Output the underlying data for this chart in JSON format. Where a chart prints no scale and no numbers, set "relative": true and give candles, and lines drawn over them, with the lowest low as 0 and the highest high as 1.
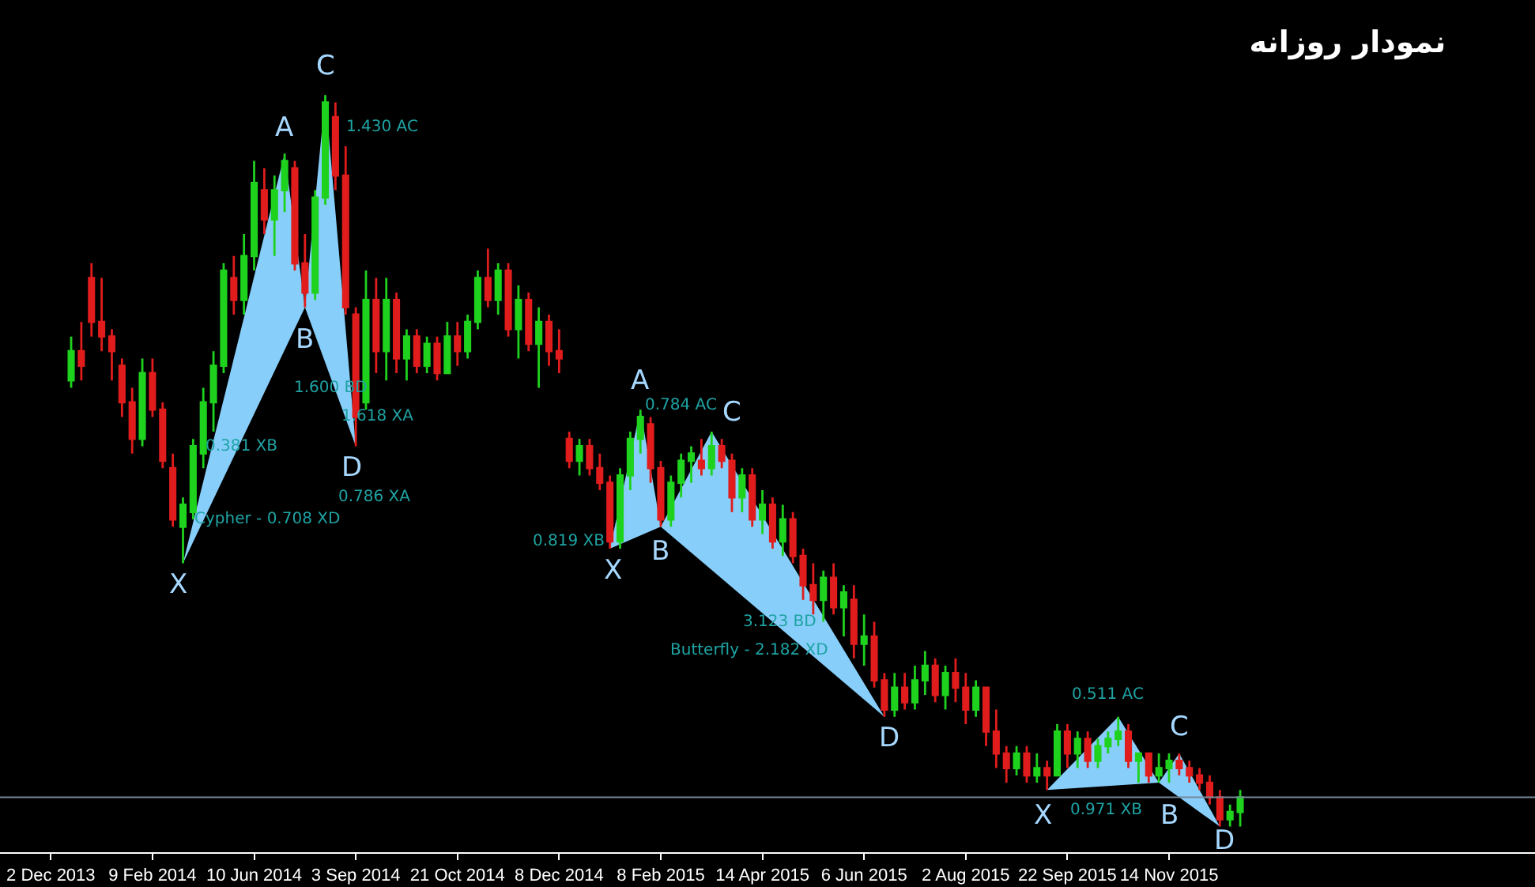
{
  "chart_data": {
    "type": "candlestick",
    "title": "نمودار روزانه",
    "relative": true,
    "categories": [
      "2 Dec 2013",
      null,
      null,
      null,
      null,
      null,
      null,
      null,
      null,
      null,
      "9 Feb 2014",
      null,
      null,
      null,
      null,
      null,
      null,
      null,
      null,
      null,
      "10 Jun 2014",
      null,
      null,
      null,
      null,
      null,
      null,
      null,
      null,
      null,
      "3 Sep 2014",
      null,
      null,
      null,
      null,
      null,
      null,
      null,
      null,
      null,
      "21 Oct 2014",
      null,
      null,
      null,
      null,
      null,
      null,
      null,
      null,
      null,
      "8 Dec 2014",
      null,
      null,
      null,
      null,
      null,
      null,
      null,
      null,
      null,
      "8 Feb 2015",
      null,
      null,
      null,
      null,
      null,
      null,
      null,
      null,
      null,
      "14 Apr 2015",
      null,
      null,
      null,
      null,
      null,
      null,
      null,
      null,
      null,
      "6 Jun 2015",
      null,
      null,
      null,
      null,
      null,
      null,
      null,
      null,
      null,
      "2 Aug 2015",
      null,
      null,
      null,
      null,
      null,
      null,
      null,
      null,
      null,
      "22 Sep 2015",
      null,
      null,
      null,
      null,
      null,
      null,
      null,
      null,
      null,
      "14 Nov 2015",
      null,
      null,
      null,
      null,
      null,
      null,
      null
    ],
    "series": [
      {
        "type": "area",
        "color": "#87cefa",
        "values": [
          null,
          null,
          null,
          null,
          null,
          null,
          null,
          null,
          null,
          null,
          null,
          null,
          null,
          0.36,
          null,
          null,
          null,
          null,
          null,
          null,
          null,
          null,
          null,
          0.92,
          null,
          0.71,
          null,
          null,
          null,
          null,
          null,
          null,
          null,
          null,
          null,
          null,
          null,
          null,
          null,
          null,
          null,
          null,
          null,
          null,
          null,
          null,
          null,
          null,
          null,
          null,
          null,
          null,
          null,
          null,
          null,
          null,
          null,
          null,
          null,
          null,
          null,
          null,
          null,
          null,
          null,
          null,
          null,
          null,
          null,
          null,
          null,
          null,
          null,
          null,
          null,
          null,
          null,
          null,
          null,
          null,
          null,
          null,
          null,
          null,
          null,
          null,
          null,
          null,
          null,
          null,
          null,
          null,
          null,
          null,
          null,
          null,
          null,
          null,
          null,
          null,
          null,
          null,
          null,
          null,
          null,
          null,
          null,
          null,
          null,
          null,
          null,
          null,
          null,
          null,
          null,
          null,
          null,
          null
        ]
      },
      {
        "type": "area",
        "color": "#87cefa",
        "values": [
          null,
          null,
          null,
          null,
          null,
          null,
          null,
          null,
          null,
          null,
          null,
          null,
          null,
          null,
          null,
          null,
          null,
          null,
          null,
          null,
          null,
          null,
          null,
          null,
          null,
          0.71,
          null,
          1.0,
          null,
          null,
          0.52,
          null,
          null,
          null,
          null,
          null,
          null,
          null,
          null,
          null,
          null,
          null,
          null,
          null,
          null,
          null,
          null,
          null,
          null,
          null,
          null,
          null,
          null,
          null,
          null,
          null,
          null,
          null,
          null,
          null,
          null,
          null,
          null,
          null,
          null,
          null,
          null,
          null,
          null,
          null,
          null,
          null,
          null,
          null,
          null,
          null,
          null,
          null,
          null,
          null,
          null,
          null,
          null,
          null,
          null,
          null,
          null,
          null,
          null,
          null,
          null,
          null,
          null,
          null,
          null,
          null,
          null,
          null,
          null,
          null,
          null,
          null,
          null,
          null,
          null,
          null,
          null,
          null,
          null,
          null,
          null,
          null,
          null,
          null,
          null,
          null,
          null,
          null
        ]
      },
      {
        "type": "area",
        "color": "#87cefa",
        "values": [
          null,
          null,
          null,
          null,
          null,
          null,
          null,
          null,
          null,
          null,
          null,
          null,
          null,
          null,
          null,
          null,
          null,
          null,
          null,
          null,
          null,
          null,
          null,
          null,
          null,
          null,
          null,
          null,
          null,
          null,
          null,
          null,
          null,
          null,
          null,
          null,
          null,
          null,
          null,
          null,
          null,
          null,
          null,
          null,
          null,
          null,
          null,
          null,
          null,
          null,
          null,
          null,
          null,
          null,
          null,
          0.38,
          null,
          null,
          0.57,
          null,
          0.41,
          null,
          null,
          null,
          null,
          null,
          null,
          null,
          null,
          null,
          null,
          null,
          null,
          null,
          null,
          null,
          null,
          null,
          null,
          null,
          null,
          null,
          null,
          null,
          null,
          null,
          null,
          null,
          null,
          null,
          null,
          null,
          null,
          null,
          null,
          null,
          null,
          null,
          null,
          null,
          null,
          null,
          null,
          null,
          null,
          null,
          null,
          null,
          null,
          null,
          null,
          null,
          null,
          null,
          null,
          null,
          null,
          null
        ]
      },
      {
        "type": "area",
        "color": "#87cefa",
        "values": [
          null,
          null,
          null,
          null,
          null,
          null,
          null,
          null,
          null,
          null,
          null,
          null,
          null,
          null,
          null,
          null,
          null,
          null,
          null,
          null,
          null,
          null,
          null,
          null,
          null,
          null,
          null,
          null,
          null,
          null,
          null,
          null,
          null,
          null,
          null,
          null,
          null,
          null,
          null,
          null,
          null,
          null,
          null,
          null,
          null,
          null,
          null,
          null,
          null,
          null,
          null,
          null,
          null,
          null,
          null,
          null,
          null,
          null,
          null,
          null,
          0.41,
          null,
          null,
          null,
          null,
          0.54,
          null,
          null,
          null,
          null,
          null,
          null,
          null,
          null,
          null,
          null,
          null,
          null,
          null,
          null,
          null,
          null,
          0.15,
          null,
          null,
          null,
          null,
          null,
          null,
          null,
          null,
          null,
          null,
          null,
          null,
          null,
          null,
          null,
          null,
          null,
          null,
          null,
          null,
          null,
          null,
          null,
          null,
          null,
          null,
          null,
          null,
          null,
          null,
          null,
          null,
          null,
          null,
          null
        ]
      },
      {
        "type": "area",
        "color": "#87cefa",
        "values": [
          null,
          null,
          null,
          null,
          null,
          null,
          null,
          null,
          null,
          null,
          null,
          null,
          null,
          null,
          null,
          null,
          null,
          null,
          null,
          null,
          null,
          null,
          null,
          null,
          null,
          null,
          null,
          null,
          null,
          null,
          null,
          null,
          null,
          null,
          null,
          null,
          null,
          null,
          null,
          null,
          null,
          null,
          null,
          null,
          null,
          null,
          null,
          null,
          null,
          null,
          null,
          null,
          null,
          null,
          null,
          null,
          null,
          null,
          null,
          null,
          null,
          null,
          null,
          null,
          null,
          null,
          null,
          null,
          null,
          null,
          null,
          null,
          null,
          null,
          null,
          null,
          null,
          null,
          null,
          null,
          null,
          null,
          null,
          null,
          null,
          null,
          null,
          null,
          null,
          null,
          null,
          null,
          null,
          null,
          null,
          null,
          null,
          null,
          0.05,
          null,
          null,
          null,
          null,
          null,
          null,
          0.15,
          null,
          null,
          null,
          0.06,
          null,
          null,
          null,
          null,
          null,
          null,
          null,
          null
        ]
      },
      {
        "type": "area",
        "color": "#87cefa",
        "values": [
          null,
          null,
          null,
          null,
          null,
          null,
          null,
          null,
          null,
          null,
          null,
          null,
          null,
          null,
          null,
          null,
          null,
          null,
          null,
          null,
          null,
          null,
          null,
          null,
          null,
          null,
          null,
          null,
          null,
          null,
          null,
          null,
          null,
          null,
          null,
          null,
          null,
          null,
          null,
          null,
          null,
          null,
          null,
          null,
          null,
          null,
          null,
          null,
          null,
          null,
          null,
          null,
          null,
          null,
          null,
          null,
          null,
          null,
          null,
          null,
          null,
          null,
          null,
          null,
          null,
          null,
          null,
          null,
          null,
          null,
          null,
          null,
          null,
          null,
          null,
          null,
          null,
          null,
          null,
          null,
          null,
          null,
          null,
          null,
          null,
          null,
          null,
          null,
          null,
          null,
          null,
          null,
          null,
          null,
          null,
          null,
          null,
          null,
          null,
          null,
          null,
          null,
          null,
          null,
          null,
          null,
          null,
          null,
          null,
          0.06,
          null,
          0.1,
          null,
          null,
          null,
          0.0,
          null,
          null
        ]
      },
      {
        "color": "#1ed21e",
        "ohlc": [
          null,
          null,
          [
            0.61,
            0.67,
            0.6,
            0.65
          ],
          null,
          null,
          null,
          null,
          null,
          null,
          [
            0.53,
            0.64,
            0.52,
            0.62
          ],
          null,
          null,
          null,
          [
            0.41,
            0.45,
            0.36,
            0.44
          ],
          [
            0.43,
            0.53,
            0.42,
            0.52
          ],
          [
            0.51,
            0.6,
            0.49,
            0.58
          ],
          [
            0.58,
            0.65,
            0.54,
            0.63
          ],
          [
            0.63,
            0.77,
            0.62,
            0.76
          ],
          null,
          [
            0.72,
            0.81,
            0.7,
            0.78
          ],
          [
            0.78,
            0.91,
            0.76,
            0.88
          ],
          null,
          [
            0.83,
            0.89,
            0.78,
            0.87
          ],
          [
            0.87,
            0.92,
            0.84,
            0.91
          ],
          null,
          null,
          [
            0.73,
            0.87,
            0.72,
            0.86
          ],
          [
            0.86,
            1.0,
            0.85,
            0.99
          ],
          null,
          null,
          null,
          [
            0.58,
            0.76,
            0.57,
            0.72
          ],
          null,
          [
            0.65,
            0.75,
            0.61,
            0.72
          ],
          null,
          [
            0.64,
            0.68,
            0.61,
            0.67
          ],
          null,
          [
            0.63,
            0.67,
            0.62,
            0.66
          ],
          null,
          [
            0.62,
            0.69,
            0.62,
            0.67
          ],
          null,
          [
            0.65,
            0.7,
            0.64,
            0.69
          ],
          [
            0.69,
            0.76,
            0.68,
            0.75
          ],
          null,
          [
            0.72,
            0.77,
            0.7,
            0.76
          ],
          null,
          [
            0.68,
            0.74,
            0.64,
            0.72
          ],
          null,
          [
            0.66,
            0.71,
            0.6,
            0.69
          ],
          null,
          null,
          null,
          [
            0.5,
            0.53,
            0.48,
            0.52
          ],
          null,
          null,
          null,
          [
            0.39,
            0.49,
            0.38,
            0.48
          ],
          [
            0.48,
            0.54,
            0.46,
            0.53
          ],
          [
            0.53,
            0.57,
            0.51,
            0.56
          ],
          null,
          null,
          [
            0.42,
            0.48,
            0.41,
            0.47
          ],
          [
            0.47,
            0.51,
            0.45,
            0.5
          ],
          [
            0.5,
            0.52,
            0.47,
            0.51
          ],
          null,
          [
            0.49,
            0.54,
            0.48,
            0.52
          ],
          null,
          null,
          [
            0.45,
            0.49,
            0.43,
            0.48
          ],
          null,
          [
            0.42,
            0.46,
            0.4,
            0.44
          ],
          null,
          [
            0.39,
            0.44,
            0.37,
            0.42
          ],
          null,
          null,
          null,
          [
            0.31,
            0.35,
            0.28,
            0.34
          ],
          null,
          [
            0.3,
            0.33,
            0.26,
            0.32
          ],
          null,
          [
            0.25,
            0.29,
            0.22,
            0.26
          ],
          null,
          null,
          [
            0.16,
            0.21,
            0.15,
            0.19
          ],
          null,
          [
            0.17,
            0.22,
            0.16,
            0.2
          ],
          [
            0.2,
            0.24,
            0.18,
            0.22
          ],
          null,
          [
            0.18,
            0.22,
            0.16,
            0.21
          ],
          null,
          null,
          [
            0.16,
            0.2,
            0.15,
            0.19
          ],
          null,
          null,
          null,
          [
            0.08,
            0.11,
            0.07,
            0.1
          ],
          null,
          [
            0.07,
            0.1,
            0.06,
            0.08
          ],
          null,
          [
            0.07,
            0.14,
            0.07,
            0.13
          ],
          null,
          [
            0.1,
            0.13,
            0.08,
            0.12
          ],
          null,
          [
            0.09,
            0.12,
            0.08,
            0.11
          ],
          [
            0.11,
            0.13,
            0.1,
            0.12
          ],
          [
            0.12,
            0.15,
            0.11,
            0.13
          ],
          null,
          [
            0.09,
            0.1,
            0.06,
            0.1
          ],
          null,
          [
            0.07,
            0.1,
            0.06,
            0.08
          ],
          [
            0.08,
            0.1,
            0.06,
            0.09
          ],
          null,
          null,
          null,
          null,
          null,
          [
            0.01,
            0.03,
            0.0,
            0.02
          ],
          [
            0.02,
            0.05,
            0.0,
            0.04
          ]
        ]
      },
      {
        "color": "#e01c1c",
        "ohlc": [
          null,
          null,
          null,
          [
            0.65,
            0.69,
            0.61,
            0.63
          ],
          [
            0.75,
            0.77,
            0.67,
            0.69
          ],
          [
            0.69,
            0.75,
            0.65,
            0.67
          ],
          [
            0.67,
            0.68,
            0.61,
            0.65
          ],
          [
            0.63,
            0.64,
            0.56,
            0.58
          ],
          [
            0.58,
            0.6,
            0.51,
            0.53
          ],
          null,
          [
            0.62,
            0.64,
            0.56,
            0.57
          ],
          [
            0.57,
            0.58,
            0.49,
            0.5
          ],
          [
            0.49,
            0.51,
            0.41,
            0.42
          ],
          null,
          null,
          null,
          null,
          null,
          [
            0.75,
            0.78,
            0.7,
            0.72
          ],
          null,
          null,
          [
            0.87,
            0.9,
            0.81,
            0.83
          ],
          null,
          null,
          [
            0.9,
            0.91,
            0.76,
            0.77
          ],
          [
            0.77,
            0.81,
            0.71,
            0.73
          ],
          null,
          null,
          [
            0.97,
            0.99,
            0.87,
            0.89
          ],
          [
            0.89,
            0.93,
            0.7,
            0.71
          ],
          [
            0.7,
            0.71,
            0.52,
            0.56
          ],
          null,
          [
            0.72,
            0.75,
            0.62,
            0.65
          ],
          null,
          [
            0.72,
            0.73,
            0.62,
            0.64
          ],
          null,
          [
            0.67,
            0.68,
            0.62,
            0.63
          ],
          null,
          [
            0.66,
            0.67,
            0.61,
            0.62
          ],
          null,
          [
            0.67,
            0.69,
            0.63,
            0.65
          ],
          null,
          null,
          [
            0.75,
            0.79,
            0.71,
            0.72
          ],
          null,
          [
            0.76,
            0.77,
            0.67,
            0.68
          ],
          null,
          [
            0.72,
            0.73,
            0.65,
            0.66
          ],
          null,
          [
            0.69,
            0.7,
            0.63,
            0.65
          ],
          [
            0.65,
            0.68,
            0.62,
            0.64
          ],
          [
            0.53,
            0.54,
            0.49,
            0.5
          ],
          null,
          [
            0.52,
            0.53,
            0.48,
            0.49
          ],
          [
            0.49,
            0.51,
            0.46,
            0.47
          ],
          [
            0.47,
            0.48,
            0.38,
            0.39
          ],
          null,
          null,
          null,
          [
            0.55,
            0.56,
            0.47,
            0.49
          ],
          [
            0.49,
            0.5,
            0.41,
            0.42
          ],
          null,
          null,
          null,
          [
            0.5,
            0.53,
            0.48,
            0.49
          ],
          null,
          [
            0.52,
            0.53,
            0.49,
            0.5
          ],
          [
            0.5,
            0.51,
            0.43,
            0.45
          ],
          null,
          [
            0.48,
            0.49,
            0.41,
            0.42
          ],
          null,
          [
            0.44,
            0.45,
            0.38,
            0.39
          ],
          null,
          [
            0.42,
            0.43,
            0.36,
            0.37
          ],
          [
            0.37,
            0.38,
            0.31,
            0.33
          ],
          [
            0.33,
            0.36,
            0.29,
            0.31
          ],
          null,
          [
            0.34,
            0.36,
            0.29,
            0.3
          ],
          null,
          [
            0.31,
            0.33,
            0.23,
            0.25
          ],
          null,
          [
            0.26,
            0.28,
            0.19,
            0.2
          ],
          [
            0.2,
            0.21,
            0.15,
            0.16
          ],
          null,
          [
            0.19,
            0.21,
            0.16,
            0.17
          ],
          null,
          null,
          [
            0.22,
            0.23,
            0.17,
            0.18
          ],
          null,
          [
            0.21,
            0.23,
            0.17,
            0.19
          ],
          [
            0.19,
            0.21,
            0.14,
            0.16
          ],
          null,
          [
            0.19,
            0.19,
            0.11,
            0.13
          ],
          [
            0.13,
            0.16,
            0.08,
            0.1
          ],
          [
            0.1,
            0.11,
            0.06,
            0.08
          ],
          null,
          [
            0.1,
            0.11,
            0.06,
            0.07
          ],
          null,
          [
            0.08,
            0.09,
            0.05,
            0.07
          ],
          null,
          [
            0.13,
            0.14,
            0.08,
            0.1
          ],
          null,
          [
            0.12,
            0.13,
            0.08,
            0.09
          ],
          null,
          null,
          null,
          [
            0.13,
            0.14,
            0.08,
            0.09
          ],
          null,
          [
            0.1,
            0.1,
            0.06,
            0.07
          ],
          null,
          null,
          [
            0.09,
            0.1,
            0.07,
            0.08
          ],
          [
            0.08,
            0.09,
            0.06,
            0.07
          ],
          [
            0.07,
            0.08,
            0.05,
            0.06
          ],
          [
            0.06,
            0.07,
            0.03,
            0.04
          ],
          [
            0.04,
            0.05,
            0.0,
            0.01
          ],
          null,
          null
        ]
      }
    ],
    "annotations": [
      "X",
      "A",
      "B",
      "C",
      "D",
      "1.430 AC",
      "1.600 BD",
      "0.381 XB",
      "Cypher - 0.708 XD",
      "1.618 XA",
      "0.786 XA",
      "X",
      "A",
      "B",
      "C",
      "D",
      "0.784 AC",
      "0.819 XB",
      "3.123 BD",
      "Butterfly - 2.182 XD",
      "X",
      "B",
      "C",
      "D",
      "0.511 AC",
      "0.971 XB"
    ],
    "ref_lines": [
      {
        "axis": "y",
        "value": 0.04,
        "color": "#778899"
      }
    ]
  }
}
